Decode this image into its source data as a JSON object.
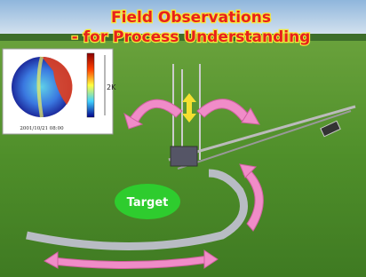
{
  "title": "Field Observations",
  "subtitle": "- for Process Understanding",
  "target_label": "Target",
  "inset": {
    "scale_label": "2K",
    "timestamp": "2001/10/21 08:00"
  }
}
